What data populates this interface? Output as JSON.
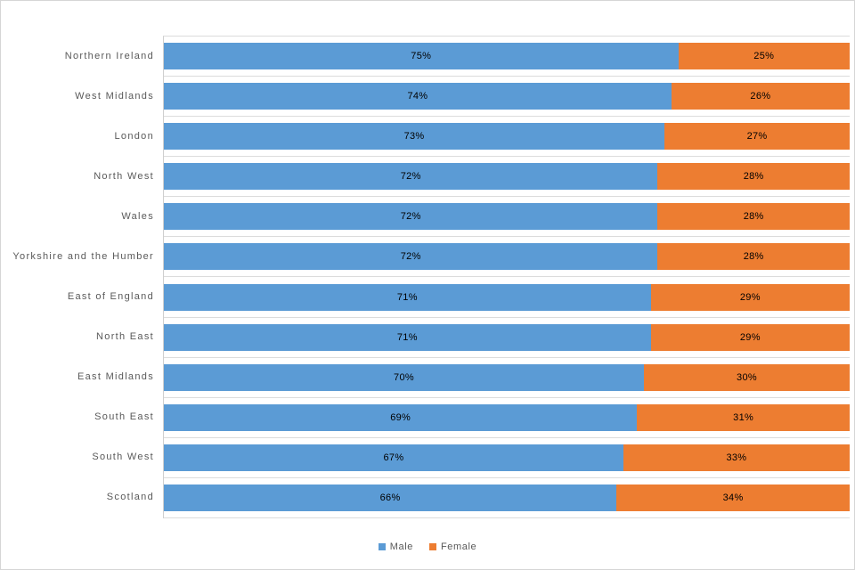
{
  "chart_data": {
    "type": "bar",
    "orientation": "horizontal",
    "stacked": true,
    "unit": "%",
    "title": "",
    "xlabel": "",
    "ylabel": "",
    "xlim": [
      0,
      100
    ],
    "grid": "category-separator-lines",
    "data_labels": "inside-center",
    "legend_position": "bottom-center",
    "categories": [
      "Northern Ireland",
      "West Midlands",
      "London",
      "North West",
      "Wales",
      "Yorkshire and the Humber",
      "East of England",
      "North East",
      "East Midlands",
      "South East",
      "South West",
      "Scotland"
    ],
    "series": [
      {
        "name": "Male",
        "color": "#5B9BD5",
        "values": [
          75,
          74,
          73,
          72,
          72,
          72,
          71,
          71,
          70,
          69,
          67,
          66
        ]
      },
      {
        "name": "Female",
        "color": "#ED7D31",
        "values": [
          25,
          26,
          27,
          28,
          28,
          28,
          29,
          29,
          30,
          31,
          33,
          34
        ]
      }
    ]
  },
  "colors": {
    "male": "#5B9BD5",
    "female": "#ED7D31",
    "gridline": "#dcdcdc",
    "category_text": "#595959",
    "data_label_text": "#000000"
  }
}
